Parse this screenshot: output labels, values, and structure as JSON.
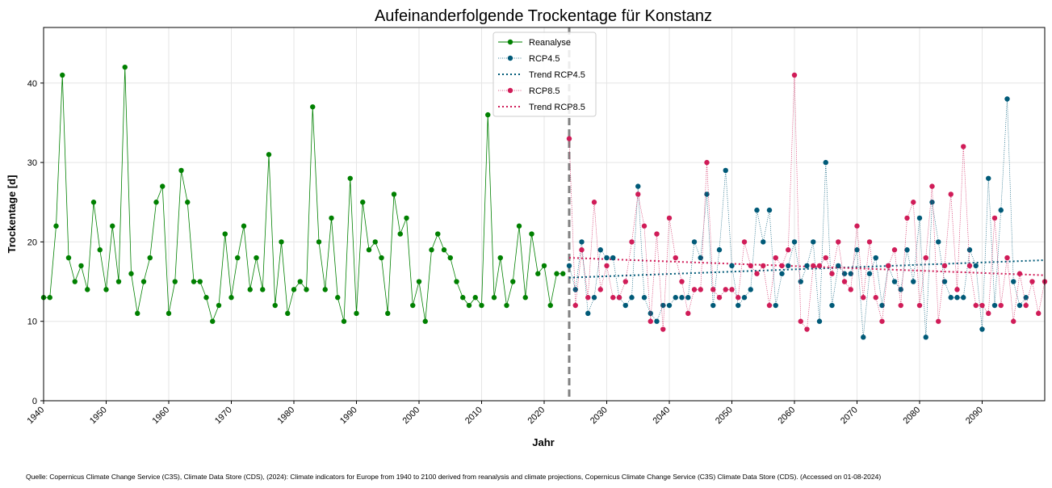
{
  "chart_data": {
    "type": "line",
    "title": "Aufeinanderfolgende Trockentage für Konstanz",
    "xlabel": "Jahr",
    "ylabel": "Trockentage [d]",
    "xlim": [
      1940,
      2100
    ],
    "ylim": [
      0,
      47
    ],
    "x_ticks": [
      "1940",
      "1950",
      "1960",
      "1970",
      "1980",
      "1990",
      "2000",
      "2010",
      "2020",
      "2030",
      "2040",
      "2050",
      "2060",
      "2070",
      "2080",
      "2090"
    ],
    "y_ticks": [
      "0",
      "10",
      "20",
      "30",
      "40"
    ],
    "grid": true,
    "legend_position": "top-center",
    "divider_year": 2024,
    "series": [
      {
        "name": "Reanalyse",
        "color": "#008000",
        "x_start": 1940,
        "values": [
          13,
          13,
          22,
          41,
          18,
          15,
          17,
          14,
          25,
          19,
          14,
          22,
          15,
          42,
          16,
          11,
          15,
          18,
          25,
          27,
          11,
          15,
          29,
          25,
          15,
          15,
          13,
          10,
          12,
          21,
          13,
          18,
          22,
          14,
          18,
          14,
          31,
          12,
          20,
          11,
          14,
          15,
          14,
          37,
          20,
          14,
          23,
          13,
          10,
          28,
          11,
          25,
          19,
          20,
          18,
          11,
          26,
          21,
          23,
          12,
          15,
          10,
          19,
          21,
          19,
          18,
          15,
          13,
          12,
          13,
          12,
          36,
          13,
          18,
          12,
          15,
          22,
          13,
          21,
          16,
          17,
          12,
          16,
          16
        ]
      },
      {
        "name": "RCP4.5",
        "color": "#005a78",
        "x_start": 2024,
        "values": [
          17,
          14,
          20,
          11,
          13,
          19,
          18,
          18,
          13,
          12,
          13,
          27,
          13,
          11,
          10,
          12,
          12,
          13,
          13,
          13,
          20,
          18,
          26,
          12,
          19,
          29,
          17,
          12,
          13,
          14,
          24,
          20,
          24,
          12,
          16,
          17,
          20,
          15,
          17,
          20,
          10,
          30,
          12,
          17,
          16,
          16,
          19,
          8,
          16,
          18,
          12,
          17,
          15,
          14,
          19,
          15,
          23,
          8,
          25,
          20,
          15,
          13,
          13,
          13,
          19,
          17,
          9,
          28,
          12,
          24,
          38,
          15,
          12,
          13
        ]
      },
      {
        "name": "Trend RCP4.5",
        "color": "#005a78",
        "style": "dotted",
        "x": [
          2024,
          2100
        ],
        "values": [
          15.5,
          17.7
        ]
      },
      {
        "name": "RCP8.5",
        "color": "#d01c58",
        "x_start": 2024,
        "values": [
          33,
          12,
          19,
          13,
          25,
          14,
          17,
          13,
          13,
          15,
          20,
          26,
          22,
          10,
          21,
          9,
          23,
          18,
          15,
          11,
          14,
          14,
          30,
          14,
          13,
          14,
          14,
          13,
          20,
          17,
          16,
          17,
          12,
          18,
          17,
          19,
          41,
          10,
          9,
          17,
          17,
          18,
          16,
          20,
          15,
          14,
          22,
          13,
          20,
          13,
          10,
          17,
          19,
          12,
          23,
          25,
          12,
          18,
          27,
          10,
          17,
          26,
          14,
          32,
          17,
          12,
          12,
          11,
          23,
          12,
          18,
          10,
          16,
          12,
          15,
          11,
          15
        ]
      },
      {
        "name": "Trend RCP8.5",
        "color": "#d01c58",
        "style": "dotted",
        "x": [
          2024,
          2100
        ],
        "values": [
          18.0,
          15.8
        ]
      }
    ]
  },
  "source_text": "Quelle: Copernicus Climate Change Service (C3S), Climate Data Store (CDS), (2024): Climate indicators for Europe from 1940 to 2100 derived from reanalysis and climate projections, Copernicus Climate Change Service (C3S) Climate Data Store (CDS). (Accessed on 01-08-2024)"
}
